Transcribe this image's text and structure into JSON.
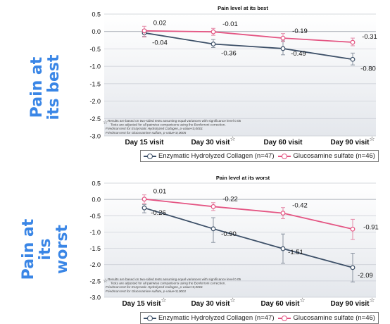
{
  "side_labels": [
    "Pain at its best",
    "Pain at its worst"
  ],
  "legend": [
    "Enzymatic Hydrolyzed Collagen (n=47)",
    "Glucosamine sulfate (n=46)"
  ],
  "colors": {
    "collagen": "#3d5068",
    "glucosamine": "#e45583",
    "accent_label": "#3a86e6"
  },
  "chart_data": [
    {
      "type": "line",
      "title": "Pain level at its best",
      "categories": [
        "Day 15 visit",
        "Day 30 visit",
        "Day 60 visit",
        "Day 90 visit"
      ],
      "category_stars": [
        false,
        true,
        false,
        true
      ],
      "ylim": [
        -3.0,
        0.5
      ],
      "yticks": [
        "0.5",
        "0.0",
        "-0.5",
        "-1.0",
        "-1.5",
        "-2.0",
        "-2.5",
        "-3.0"
      ],
      "series": [
        {
          "name": "Enzymatic Hydrolyzed Collagen (n=47)",
          "values": [
            -0.04,
            -0.36,
            -0.49,
            -0.8
          ],
          "labels": [
            "-0.04",
            "-0.36",
            "-0.49",
            "-0.80"
          ]
        },
        {
          "name": "Glucosamine sulfate (n=46)",
          "values": [
            0.02,
            -0.01,
            -0.19,
            -0.31
          ],
          "labels": [
            "0.02",
            "-0.01",
            "-0.19",
            "-0.31"
          ]
        }
      ],
      "footnotes": [
        "Results are based on two-sided tests assuming equal variances with significance level 0.05",
        "Tests are adjusted for all pairwise comparisons using the Bonferroni correction.",
        "Friedman test for Enzymatic Hydrolyzed Collagen, p-value<0,0001",
        "Friedman test for Glucosamine sulfate, p-value<0,0005"
      ]
    },
    {
      "type": "line",
      "title": "Pain level at its worst",
      "categories": [
        "Day 15 visit",
        "Day 30 visit",
        "Day 60 visit",
        "Day 90 visit"
      ],
      "category_stars": [
        true,
        true,
        true,
        true
      ],
      "ylim": [
        -3.0,
        0.5
      ],
      "yticks": [
        "0.5",
        "0.0",
        "-0.5",
        "-1.0",
        "-1.5",
        "-2.0",
        "-2.5",
        "-3.0"
      ],
      "series": [
        {
          "name": "Enzymatic Hydrolyzed Collagen (n=47)",
          "values": [
            -0.26,
            -0.9,
            -1.51,
            -2.09
          ],
          "labels": [
            "-0.26",
            "-0.90",
            "-1.51",
            "-2.09"
          ]
        },
        {
          "name": "Glucosamine sulfate (n=46)",
          "values": [
            0.01,
            -0.22,
            -0.42,
            -0.91
          ],
          "labels": [
            "0.01",
            "-0.22",
            "-0.42",
            "-0.91"
          ]
        }
      ],
      "footnotes": [
        "Results are based on two-sided tests assuming equal variances with significance level 0.05",
        "Tests are adjusted for all pairwise comparisons using the Bonferroni correction.",
        "Friedman test for Enzymatic Hydrolyzed Collagen, p-value<0,0001",
        "Friedman test for Glucosamine sulfate, p-value<0,0001"
      ]
    }
  ]
}
